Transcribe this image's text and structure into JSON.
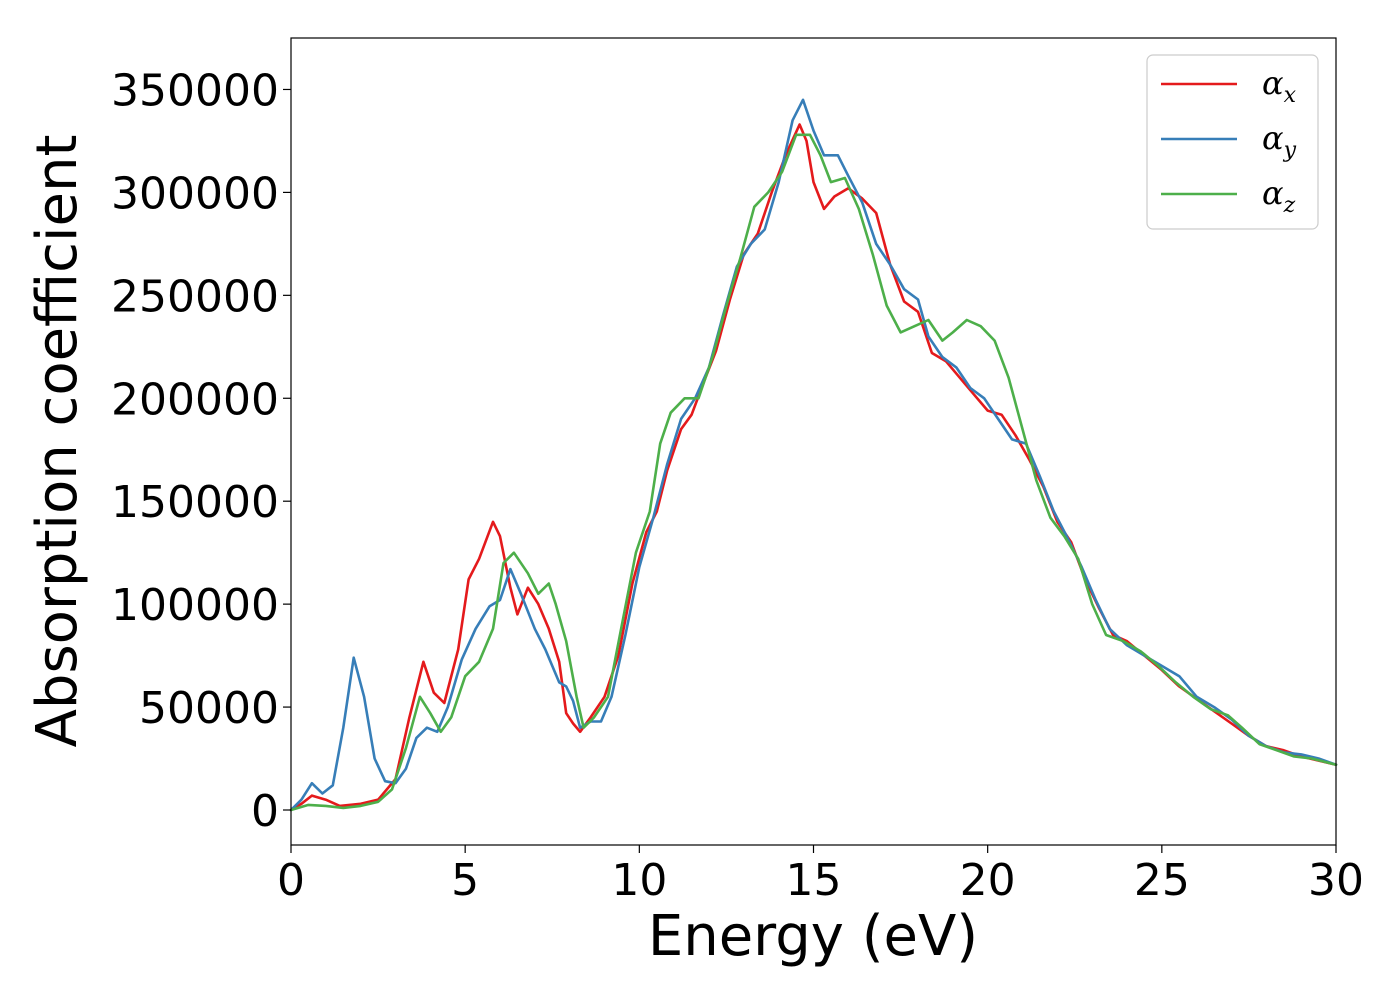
{
  "chart_data": {
    "type": "line",
    "title": "",
    "xlabel": "Energy (eV)",
    "ylabel": "Absorption coefficient",
    "xlim": [
      0,
      30
    ],
    "ylim": [
      -17000,
      375000
    ],
    "xticks": [
      0,
      5,
      10,
      15,
      20,
      25,
      30
    ],
    "yticks": [
      0,
      50000,
      100000,
      150000,
      200000,
      250000,
      300000,
      350000
    ],
    "legend_position": "top-right",
    "grid": false,
    "series": [
      {
        "name": "αx",
        "base": "α",
        "sub": "x",
        "color": "#e41a1c",
        "points": [
          [
            0,
            0
          ],
          [
            0.3,
            3000
          ],
          [
            0.6,
            7000
          ],
          [
            1.0,
            5000
          ],
          [
            1.4,
            2000
          ],
          [
            2.0,
            3000
          ],
          [
            2.5,
            5000
          ],
          [
            3.0,
            15000
          ],
          [
            3.4,
            45000
          ],
          [
            3.8,
            72000
          ],
          [
            4.1,
            57000
          ],
          [
            4.4,
            52000
          ],
          [
            4.8,
            78000
          ],
          [
            5.1,
            112000
          ],
          [
            5.4,
            122000
          ],
          [
            5.8,
            140000
          ],
          [
            6.0,
            133000
          ],
          [
            6.3,
            108000
          ],
          [
            6.5,
            95000
          ],
          [
            6.8,
            108000
          ],
          [
            7.1,
            100000
          ],
          [
            7.4,
            88000
          ],
          [
            7.7,
            72000
          ],
          [
            7.9,
            47000
          ],
          [
            8.1,
            42000
          ],
          [
            8.3,
            38000
          ],
          [
            8.6,
            45000
          ],
          [
            9.0,
            55000
          ],
          [
            9.4,
            75000
          ],
          [
            9.8,
            110000
          ],
          [
            10.2,
            135000
          ],
          [
            10.5,
            145000
          ],
          [
            10.8,
            165000
          ],
          [
            11.2,
            185000
          ],
          [
            11.5,
            192000
          ],
          [
            11.9,
            210000
          ],
          [
            12.2,
            223000
          ],
          [
            12.6,
            248000
          ],
          [
            13.0,
            270000
          ],
          [
            13.4,
            280000
          ],
          [
            13.8,
            300000
          ],
          [
            14.2,
            318000
          ],
          [
            14.6,
            333000
          ],
          [
            14.8,
            325000
          ],
          [
            15.0,
            305000
          ],
          [
            15.3,
            292000
          ],
          [
            15.6,
            298000
          ],
          [
            16.0,
            302000
          ],
          [
            16.4,
            297000
          ],
          [
            16.8,
            290000
          ],
          [
            17.2,
            265000
          ],
          [
            17.6,
            247000
          ],
          [
            18.0,
            242000
          ],
          [
            18.4,
            222000
          ],
          [
            18.8,
            218000
          ],
          [
            19.2,
            210000
          ],
          [
            19.6,
            202000
          ],
          [
            20.0,
            194000
          ],
          [
            20.4,
            192000
          ],
          [
            20.8,
            182000
          ],
          [
            21.2,
            170000
          ],
          [
            21.6,
            157000
          ],
          [
            22.0,
            140000
          ],
          [
            22.4,
            130000
          ],
          [
            22.8,
            112000
          ],
          [
            23.2,
            98000
          ],
          [
            23.6,
            85000
          ],
          [
            24.0,
            82000
          ],
          [
            24.5,
            75000
          ],
          [
            25.0,
            68000
          ],
          [
            25.5,
            60000
          ],
          [
            26.0,
            54000
          ],
          [
            26.5,
            48000
          ],
          [
            27.0,
            42000
          ],
          [
            27.5,
            36000
          ],
          [
            28.0,
            31000
          ],
          [
            28.5,
            29000
          ],
          [
            29.0,
            26000
          ],
          [
            29.5,
            24000
          ],
          [
            30.0,
            22000
          ]
        ]
      },
      {
        "name": "αy",
        "base": "α",
        "sub": "y",
        "color": "#377eb8",
        "points": [
          [
            0,
            0
          ],
          [
            0.3,
            5000
          ],
          [
            0.6,
            13000
          ],
          [
            0.9,
            8000
          ],
          [
            1.2,
            12000
          ],
          [
            1.5,
            40000
          ],
          [
            1.8,
            74000
          ],
          [
            2.1,
            55000
          ],
          [
            2.4,
            25000
          ],
          [
            2.7,
            14000
          ],
          [
            3.0,
            13000
          ],
          [
            3.3,
            20000
          ],
          [
            3.6,
            35000
          ],
          [
            3.9,
            40000
          ],
          [
            4.2,
            38000
          ],
          [
            4.5,
            50000
          ],
          [
            4.9,
            73000
          ],
          [
            5.3,
            88000
          ],
          [
            5.7,
            99000
          ],
          [
            6.0,
            102000
          ],
          [
            6.3,
            117000
          ],
          [
            6.6,
            105000
          ],
          [
            7.0,
            88000
          ],
          [
            7.3,
            78000
          ],
          [
            7.7,
            62000
          ],
          [
            7.9,
            60000
          ],
          [
            8.1,
            53000
          ],
          [
            8.3,
            40000
          ],
          [
            8.6,
            43000
          ],
          [
            8.9,
            43000
          ],
          [
            9.2,
            55000
          ],
          [
            9.6,
            85000
          ],
          [
            10.0,
            118000
          ],
          [
            10.4,
            142000
          ],
          [
            10.8,
            168000
          ],
          [
            11.2,
            190000
          ],
          [
            11.6,
            200000
          ],
          [
            12.0,
            215000
          ],
          [
            12.4,
            240000
          ],
          [
            12.8,
            264000
          ],
          [
            13.2,
            275000
          ],
          [
            13.6,
            282000
          ],
          [
            14.0,
            305000
          ],
          [
            14.4,
            335000
          ],
          [
            14.7,
            345000
          ],
          [
            15.0,
            330000
          ],
          [
            15.3,
            318000
          ],
          [
            15.7,
            318000
          ],
          [
            16.0,
            308000
          ],
          [
            16.4,
            295000
          ],
          [
            16.8,
            275000
          ],
          [
            17.2,
            265000
          ],
          [
            17.6,
            253000
          ],
          [
            18.0,
            248000
          ],
          [
            18.3,
            230000
          ],
          [
            18.7,
            220000
          ],
          [
            19.1,
            215000
          ],
          [
            19.5,
            205000
          ],
          [
            19.9,
            200000
          ],
          [
            20.3,
            190000
          ],
          [
            20.7,
            180000
          ],
          [
            21.1,
            178000
          ],
          [
            21.5,
            162000
          ],
          [
            21.9,
            145000
          ],
          [
            22.3,
            132000
          ],
          [
            22.7,
            118000
          ],
          [
            23.1,
            102000
          ],
          [
            23.5,
            88000
          ],
          [
            24.0,
            80000
          ],
          [
            24.5,
            75000
          ],
          [
            25.0,
            70000
          ],
          [
            25.5,
            65000
          ],
          [
            26.0,
            55000
          ],
          [
            26.5,
            50000
          ],
          [
            27.0,
            44000
          ],
          [
            27.5,
            36000
          ],
          [
            28.0,
            31000
          ],
          [
            28.5,
            28000
          ],
          [
            29.0,
            27000
          ],
          [
            29.5,
            25000
          ],
          [
            30.0,
            22000
          ]
        ]
      },
      {
        "name": "αz",
        "base": "α",
        "sub": "z",
        "color": "#4daf4a",
        "points": [
          [
            0,
            0
          ],
          [
            0.5,
            2500
          ],
          [
            1.0,
            2000
          ],
          [
            1.5,
            1000
          ],
          [
            2.0,
            2000
          ],
          [
            2.5,
            4000
          ],
          [
            2.9,
            10000
          ],
          [
            3.3,
            30000
          ],
          [
            3.7,
            55000
          ],
          [
            4.0,
            47000
          ],
          [
            4.3,
            38000
          ],
          [
            4.6,
            45000
          ],
          [
            5.0,
            65000
          ],
          [
            5.4,
            72000
          ],
          [
            5.8,
            88000
          ],
          [
            6.1,
            120000
          ],
          [
            6.4,
            125000
          ],
          [
            6.8,
            115000
          ],
          [
            7.1,
            105000
          ],
          [
            7.4,
            110000
          ],
          [
            7.6,
            100000
          ],
          [
            7.9,
            82000
          ],
          [
            8.2,
            55000
          ],
          [
            8.4,
            40000
          ],
          [
            8.7,
            45000
          ],
          [
            9.1,
            55000
          ],
          [
            9.5,
            90000
          ],
          [
            9.9,
            125000
          ],
          [
            10.3,
            145000
          ],
          [
            10.6,
            178000
          ],
          [
            10.9,
            193000
          ],
          [
            11.3,
            200000
          ],
          [
            11.7,
            200000
          ],
          [
            12.1,
            220000
          ],
          [
            12.5,
            245000
          ],
          [
            12.9,
            268000
          ],
          [
            13.3,
            293000
          ],
          [
            13.7,
            300000
          ],
          [
            14.1,
            310000
          ],
          [
            14.5,
            328000
          ],
          [
            14.9,
            328000
          ],
          [
            15.2,
            318000
          ],
          [
            15.5,
            305000
          ],
          [
            15.9,
            307000
          ],
          [
            16.3,
            292000
          ],
          [
            16.7,
            270000
          ],
          [
            17.1,
            245000
          ],
          [
            17.5,
            232000
          ],
          [
            17.9,
            235000
          ],
          [
            18.3,
            238000
          ],
          [
            18.7,
            228000
          ],
          [
            19.0,
            232000
          ],
          [
            19.4,
            238000
          ],
          [
            19.8,
            235000
          ],
          [
            20.2,
            228000
          ],
          [
            20.6,
            210000
          ],
          [
            21.0,
            185000
          ],
          [
            21.4,
            160000
          ],
          [
            21.8,
            142000
          ],
          [
            22.2,
            133000
          ],
          [
            22.6,
            122000
          ],
          [
            23.0,
            100000
          ],
          [
            23.4,
            85000
          ],
          [
            23.9,
            82000
          ],
          [
            24.4,
            77000
          ],
          [
            24.9,
            70000
          ],
          [
            25.4,
            62000
          ],
          [
            25.9,
            55000
          ],
          [
            26.4,
            49000
          ],
          [
            26.9,
            46000
          ],
          [
            27.3,
            40000
          ],
          [
            27.8,
            32000
          ],
          [
            28.3,
            29000
          ],
          [
            28.8,
            26000
          ],
          [
            29.3,
            25000
          ],
          [
            30.0,
            22000
          ]
        ]
      }
    ]
  }
}
